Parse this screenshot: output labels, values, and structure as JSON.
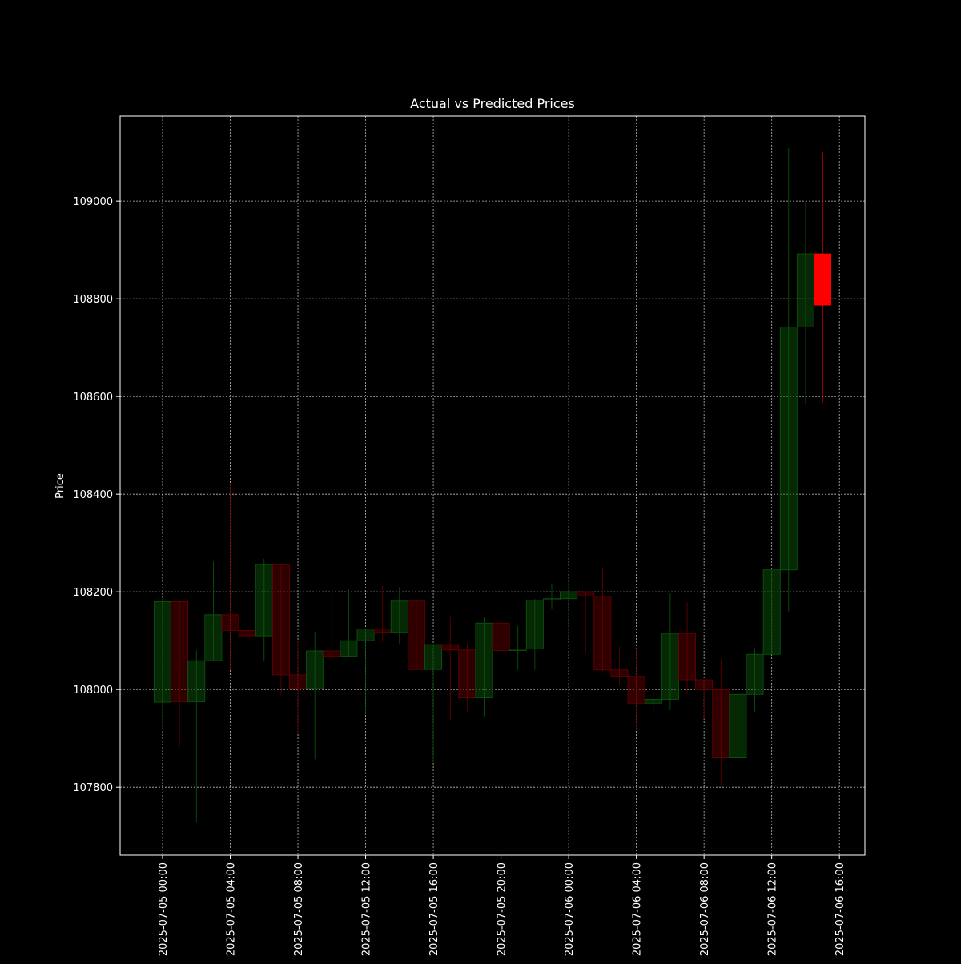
{
  "chart_data": {
    "type": "candlestick",
    "title": "Actual vs Predicted Prices",
    "y_label": "Price",
    "series": [
      {
        "up_color": "#0a5a0a",
        "down_color": "#6a0000",
        "x": [
          "2025-07-05 00:00",
          "2025-07-05 01:00",
          "2025-07-05 02:00",
          "2025-07-05 03:00",
          "2025-07-05 04:00",
          "2025-07-05 05:00",
          "2025-07-05 06:00",
          "2025-07-05 07:00",
          "2025-07-05 08:00",
          "2025-07-05 09:00",
          "2025-07-05 10:00",
          "2025-07-05 11:00",
          "2025-07-05 12:00",
          "2025-07-05 13:00",
          "2025-07-05 14:00",
          "2025-07-05 15:00",
          "2025-07-05 16:00",
          "2025-07-05 17:00",
          "2025-07-05 18:00",
          "2025-07-05 19:00",
          "2025-07-05 20:00",
          "2025-07-05 21:00",
          "2025-07-05 22:00",
          "2025-07-05 23:00",
          "2025-07-06 00:00",
          "2025-07-06 01:00",
          "2025-07-06 02:00",
          "2025-07-06 03:00",
          "2025-07-06 04:00",
          "2025-07-06 05:00",
          "2025-07-06 06:00",
          "2025-07-06 07:00",
          "2025-07-06 08:00",
          "2025-07-06 09:00",
          "2025-07-06 10:00",
          "2025-07-06 11:00",
          "2025-07-06 12:00",
          "2025-07-06 13:00",
          "2025-07-06 14:00"
        ],
        "open": [
          107974,
          108180,
          107975,
          108059,
          108153,
          108121,
          108110,
          108256,
          108030,
          108002,
          108079,
          108068,
          108100,
          108124,
          108117,
          108181,
          108041,
          108092,
          108081,
          107983,
          108136,
          108080,
          108083,
          108183,
          108186,
          108200,
          108191,
          108040,
          108027,
          107972,
          107980,
          108115,
          108020,
          108000,
          107860,
          107990,
          108072,
          108245,
          108742
        ],
        "high": [
          108185,
          108180,
          108080,
          108262,
          108423,
          108145,
          108268,
          108256,
          108100,
          108118,
          108197,
          108205,
          108124,
          108212,
          108210,
          108181,
          108092,
          108150,
          108095,
          108148,
          108136,
          108130,
          108185,
          108215,
          108225,
          108200,
          108248,
          108088,
          108085,
          108000,
          108197,
          108178,
          108020,
          108062,
          108125,
          108085,
          108245,
          109108,
          109000
        ],
        "low": [
          107920,
          107882,
          107728,
          108059,
          108040,
          107990,
          108058,
          107988,
          107910,
          107857,
          108045,
          108068,
          107950,
          108100,
          108093,
          108041,
          107850,
          107937,
          107955,
          107945,
          107965,
          108040,
          108040,
          108165,
          108110,
          108075,
          108035,
          108010,
          107918,
          107955,
          107958,
          107990,
          107940,
          107802,
          107805,
          107955,
          108072,
          108160,
          108585
        ],
        "close": [
          108180,
          107975,
          108059,
          108153,
          108121,
          108110,
          108256,
          108030,
          108002,
          108079,
          108068,
          108100,
          108124,
          108117,
          108181,
          108041,
          108092,
          108081,
          107983,
          108136,
          108080,
          108083,
          108183,
          108186,
          108200,
          108191,
          108040,
          108027,
          107972,
          107980,
          108115,
          108020,
          108000,
          107860,
          107990,
          108072,
          108245,
          108742,
          108892
        ]
      },
      {
        "color": "#ff0000",
        "x": [
          "2025-07-06 15:00"
        ],
        "open": [
          108892
        ],
        "high": [
          109100
        ],
        "low": [
          108588
        ],
        "close": [
          108787
        ]
      }
    ],
    "ylim": [
      107661,
      109174
    ],
    "yticks": [
      107800,
      108000,
      108200,
      108400,
      108600,
      108800,
      109000
    ],
    "xticks": [
      "2025-07-05 00:00",
      "2025-07-05 04:00",
      "2025-07-05 08:00",
      "2025-07-05 12:00",
      "2025-07-05 16:00",
      "2025-07-05 20:00",
      "2025-07-06 00:00",
      "2025-07-06 04:00",
      "2025-07-06 08:00",
      "2025-07-06 12:00",
      "2025-07-06 16:00"
    ],
    "grid": true
  }
}
